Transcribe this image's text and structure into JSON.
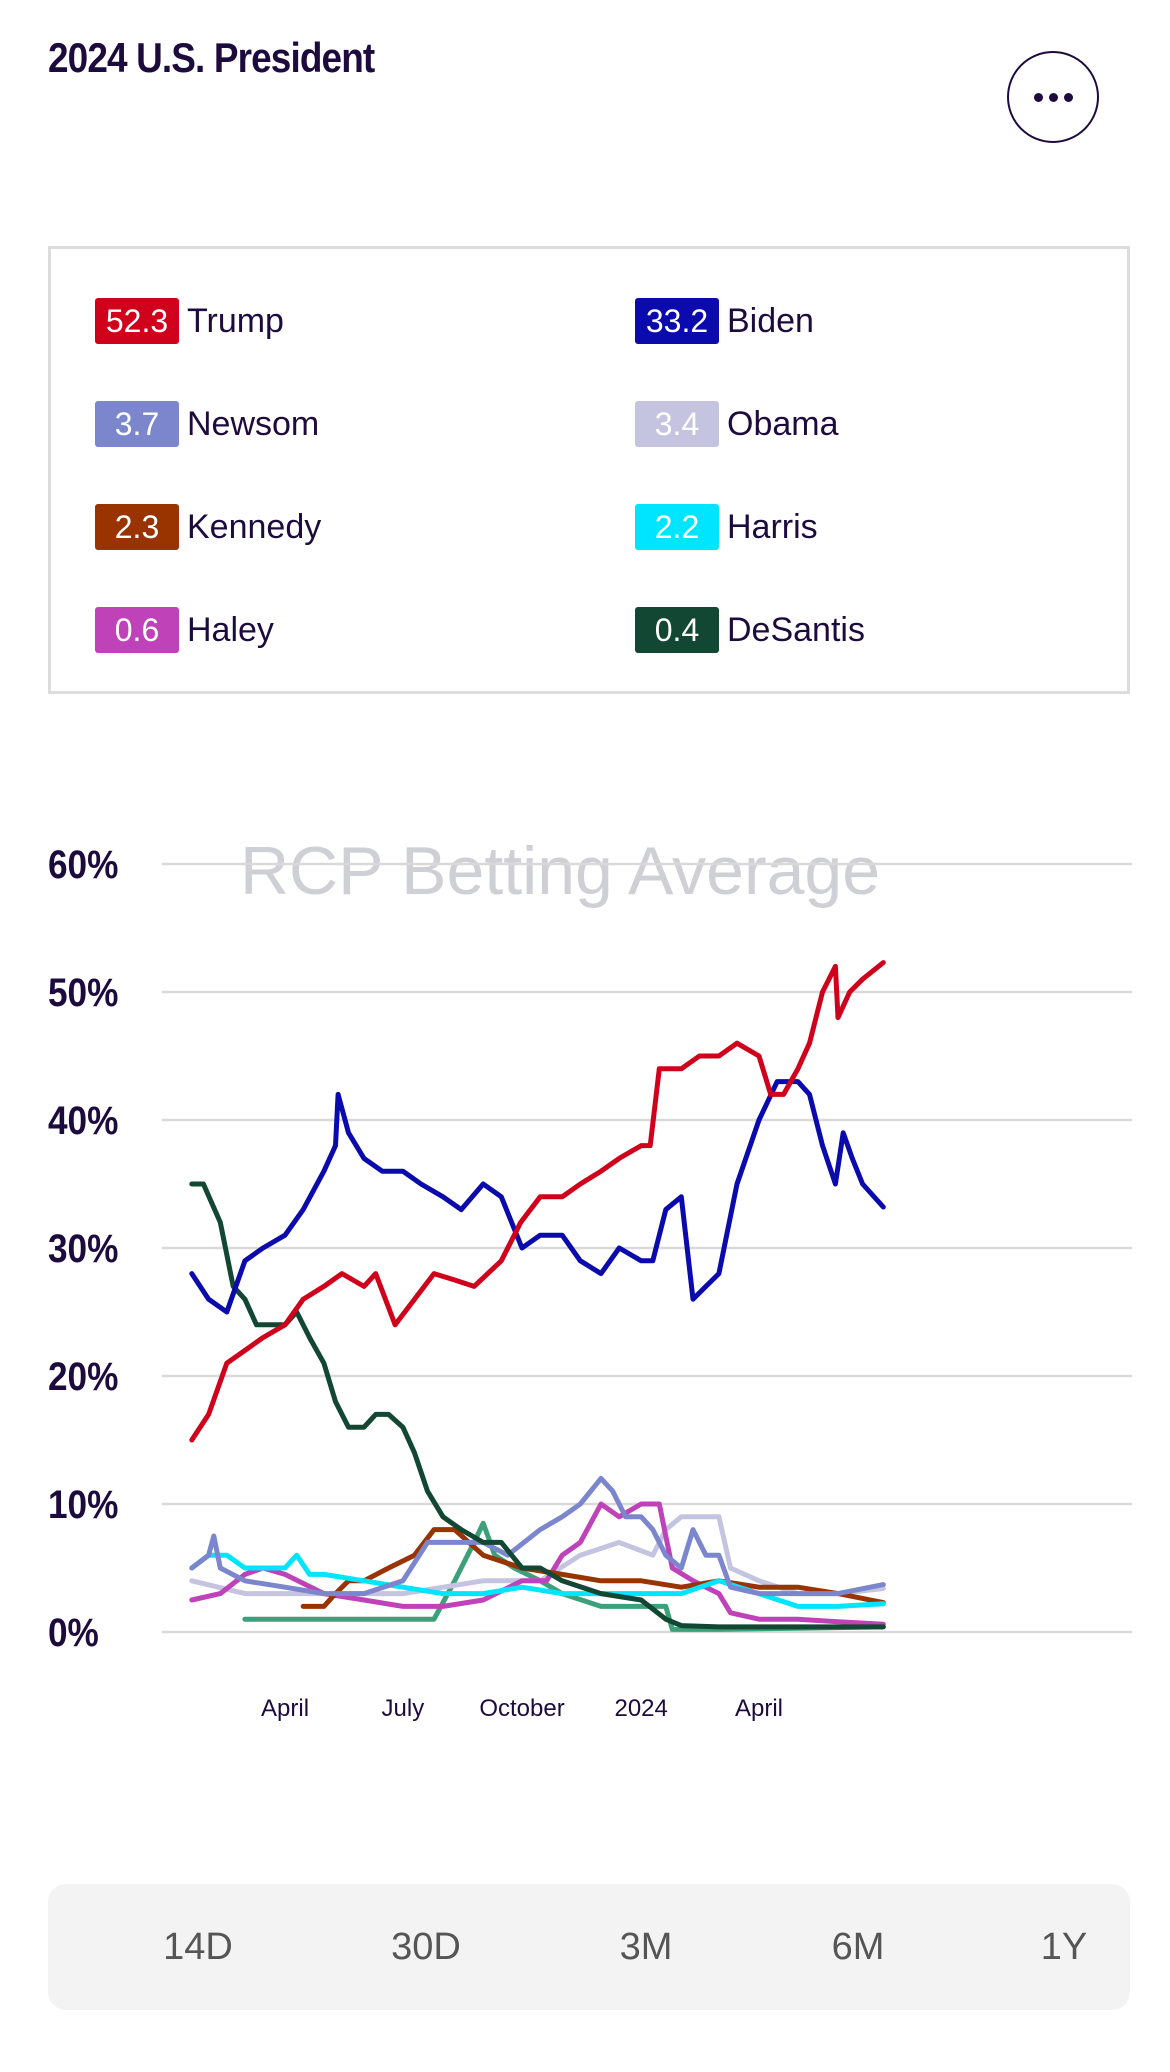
{
  "header": {
    "title": "2024 U.S. President"
  },
  "legend": [
    {
      "value": "52.3",
      "name": "Trump",
      "color": "#d0021b"
    },
    {
      "value": "33.2",
      "name": "Biden",
      "color": "#0a0aad"
    },
    {
      "value": "3.7",
      "name": "Newsom",
      "color": "#7b86cc"
    },
    {
      "value": "3.4",
      "name": "Obama",
      "color": "#c4c4e0"
    },
    {
      "value": "2.3",
      "name": "Kennedy",
      "color": "#993300"
    },
    {
      "value": "2.2",
      "name": "Harris",
      "color": "#00e5ff"
    },
    {
      "value": "0.6",
      "name": "Haley",
      "color": "#c042b8"
    },
    {
      "value": "0.4",
      "name": "DeSantis",
      "color": "#124733"
    }
  ],
  "tabs": [
    "14D",
    "30D",
    "3M",
    "6M",
    "1Y"
  ],
  "chart_data": {
    "type": "line",
    "watermark": "RCP Betting Average",
    "ylim": [
      0,
      60
    ],
    "yticks": [
      60,
      50,
      40,
      30,
      20,
      10,
      0
    ],
    "ytick_labels": [
      "60%",
      "50%",
      "40%",
      "30%",
      "20%",
      "10%",
      "0%"
    ],
    "xlim": [
      "2023-01-19",
      "2024-07-06"
    ],
    "xticks": [
      {
        "date": "2023-04-01",
        "label": "April"
      },
      {
        "date": "2023-07-01",
        "label": "July"
      },
      {
        "date": "2023-10-01",
        "label": "October"
      },
      {
        "date": "2024-01-01",
        "label": "2024"
      },
      {
        "date": "2024-04-01",
        "label": "April"
      }
    ],
    "grid": true,
    "series": [
      {
        "name": "Trump",
        "color": "#d0021b",
        "points": [
          [
            "2023-01-19",
            15
          ],
          [
            "2023-02-01",
            17
          ],
          [
            "2023-02-15",
            21
          ],
          [
            "2023-03-01",
            22
          ],
          [
            "2023-03-15",
            23
          ],
          [
            "2023-04-01",
            24
          ],
          [
            "2023-04-15",
            26
          ],
          [
            "2023-05-01",
            27
          ],
          [
            "2023-05-15",
            28
          ],
          [
            "2023-06-01",
            27
          ],
          [
            "2023-06-10",
            28
          ],
          [
            "2023-06-25",
            24
          ],
          [
            "2023-07-10",
            26
          ],
          [
            "2023-07-25",
            28
          ],
          [
            "2023-08-10",
            27.5
          ],
          [
            "2023-08-25",
            27
          ],
          [
            "2023-09-15",
            29
          ],
          [
            "2023-09-30",
            32
          ],
          [
            "2023-10-15",
            34
          ],
          [
            "2023-11-01",
            34
          ],
          [
            "2023-11-15",
            35
          ],
          [
            "2023-12-01",
            36
          ],
          [
            "2023-12-15",
            37
          ],
          [
            "2024-01-01",
            38
          ],
          [
            "2024-01-08",
            38
          ],
          [
            "2024-01-15",
            44
          ],
          [
            "2024-02-01",
            44
          ],
          [
            "2024-02-15",
            45
          ],
          [
            "2024-03-01",
            45
          ],
          [
            "2024-03-15",
            46
          ],
          [
            "2024-04-01",
            45
          ],
          [
            "2024-04-10",
            42
          ],
          [
            "2024-04-20",
            42
          ],
          [
            "2024-05-01",
            44
          ],
          [
            "2024-05-10",
            46
          ],
          [
            "2024-05-20",
            50
          ],
          [
            "2024-05-30",
            52
          ],
          [
            "2024-06-01",
            48
          ],
          [
            "2024-06-10",
            50
          ],
          [
            "2024-06-20",
            51
          ],
          [
            "2024-07-06",
            52.3
          ]
        ]
      },
      {
        "name": "Biden",
        "color": "#0a0aad",
        "points": [
          [
            "2023-01-19",
            28
          ],
          [
            "2023-02-01",
            26
          ],
          [
            "2023-02-15",
            25
          ],
          [
            "2023-03-01",
            29
          ],
          [
            "2023-03-15",
            30
          ],
          [
            "2023-04-01",
            31
          ],
          [
            "2023-04-15",
            33
          ],
          [
            "2023-05-01",
            36
          ],
          [
            "2023-05-10",
            38
          ],
          [
            "2023-05-12",
            42
          ],
          [
            "2023-05-20",
            39
          ],
          [
            "2023-06-01",
            37
          ],
          [
            "2023-06-15",
            36
          ],
          [
            "2023-07-01",
            36
          ],
          [
            "2023-07-15",
            35
          ],
          [
            "2023-08-01",
            34
          ],
          [
            "2023-08-15",
            33
          ],
          [
            "2023-09-01",
            35
          ],
          [
            "2023-09-15",
            34
          ],
          [
            "2023-10-01",
            30
          ],
          [
            "2023-10-15",
            31
          ],
          [
            "2023-11-01",
            31
          ],
          [
            "2023-11-15",
            29
          ],
          [
            "2023-12-01",
            28
          ],
          [
            "2023-12-15",
            30
          ],
          [
            "2024-01-01",
            29
          ],
          [
            "2024-01-10",
            29
          ],
          [
            "2024-01-20",
            33
          ],
          [
            "2024-02-01",
            34
          ],
          [
            "2024-02-10",
            26
          ],
          [
            "2024-02-20",
            27
          ],
          [
            "2024-03-01",
            28
          ],
          [
            "2024-03-15",
            35
          ],
          [
            "2024-04-01",
            40
          ],
          [
            "2024-04-15",
            43
          ],
          [
            "2024-05-01",
            43
          ],
          [
            "2024-05-10",
            42
          ],
          [
            "2024-05-20",
            38
          ],
          [
            "2024-05-30",
            35
          ],
          [
            "2024-06-05",
            39
          ],
          [
            "2024-06-12",
            37
          ],
          [
            "2024-06-20",
            35
          ],
          [
            "2024-07-06",
            33.2
          ]
        ]
      },
      {
        "name": "Newsom",
        "color": "#7b86cc",
        "points": [
          [
            "2023-01-19",
            5
          ],
          [
            "2023-02-01",
            6
          ],
          [
            "2023-02-05",
            7.5
          ],
          [
            "2023-02-10",
            5
          ],
          [
            "2023-03-01",
            4
          ],
          [
            "2023-04-01",
            3.5
          ],
          [
            "2023-05-01",
            3
          ],
          [
            "2023-06-01",
            3
          ],
          [
            "2023-07-01",
            4
          ],
          [
            "2023-07-20",
            7
          ],
          [
            "2023-08-10",
            7
          ],
          [
            "2023-09-01",
            7
          ],
          [
            "2023-09-20",
            6
          ],
          [
            "2023-10-15",
            8
          ],
          [
            "2023-11-01",
            9
          ],
          [
            "2023-11-15",
            10
          ],
          [
            "2023-12-01",
            12
          ],
          [
            "2023-12-10",
            11
          ],
          [
            "2023-12-20",
            9
          ],
          [
            "2024-01-01",
            9
          ],
          [
            "2024-01-10",
            8
          ],
          [
            "2024-01-20",
            6
          ],
          [
            "2024-02-01",
            5
          ],
          [
            "2024-02-10",
            8
          ],
          [
            "2024-02-20",
            6
          ],
          [
            "2024-03-01",
            6
          ],
          [
            "2024-03-10",
            3.5
          ],
          [
            "2024-04-01",
            3
          ],
          [
            "2024-05-01",
            3
          ],
          [
            "2024-06-01",
            3
          ],
          [
            "2024-07-06",
            3.7
          ]
        ]
      },
      {
        "name": "Obama",
        "color": "#c4c4e0",
        "points": [
          [
            "2023-01-19",
            4
          ],
          [
            "2023-03-01",
            3
          ],
          [
            "2023-05-01",
            3
          ],
          [
            "2023-07-01",
            3
          ],
          [
            "2023-09-01",
            4
          ],
          [
            "2023-10-15",
            4
          ],
          [
            "2023-11-15",
            6
          ],
          [
            "2023-12-15",
            7
          ],
          [
            "2024-01-10",
            6
          ],
          [
            "2024-01-20",
            8
          ],
          [
            "2024-02-01",
            9
          ],
          [
            "2024-02-15",
            9
          ],
          [
            "2024-03-01",
            9
          ],
          [
            "2024-03-10",
            5
          ],
          [
            "2024-04-01",
            4
          ],
          [
            "2024-05-01",
            3
          ],
          [
            "2024-06-01",
            3
          ],
          [
            "2024-07-06",
            3.4
          ]
        ]
      },
      {
        "name": "Kennedy",
        "color": "#993300",
        "points": [
          [
            "2023-04-15",
            2
          ],
          [
            "2023-05-01",
            2
          ],
          [
            "2023-05-10",
            3
          ],
          [
            "2023-05-20",
            4
          ],
          [
            "2023-06-01",
            4
          ],
          [
            "2023-06-20",
            5
          ],
          [
            "2023-07-10",
            6
          ],
          [
            "2023-07-25",
            8
          ],
          [
            "2023-08-10",
            8
          ],
          [
            "2023-09-01",
            6
          ],
          [
            "2023-10-01",
            5
          ],
          [
            "2023-11-01",
            4.5
          ],
          [
            "2023-12-01",
            4
          ],
          [
            "2024-01-01",
            4
          ],
          [
            "2024-02-01",
            3.5
          ],
          [
            "2024-03-01",
            4
          ],
          [
            "2024-04-01",
            3.5
          ],
          [
            "2024-05-01",
            3.5
          ],
          [
            "2024-06-01",
            3
          ],
          [
            "2024-07-06",
            2.3
          ]
        ]
      },
      {
        "name": "Harris",
        "color": "#00e5ff",
        "points": [
          [
            "2023-01-19",
            5
          ],
          [
            "2023-02-01",
            6
          ],
          [
            "2023-02-15",
            6
          ],
          [
            "2023-03-01",
            5
          ],
          [
            "2023-04-01",
            5
          ],
          [
            "2023-04-10",
            6
          ],
          [
            "2023-04-20",
            4.5
          ],
          [
            "2023-05-01",
            4.5
          ],
          [
            "2023-06-01",
            4
          ],
          [
            "2023-07-01",
            3.5
          ],
          [
            "2023-08-01",
            3
          ],
          [
            "2023-09-01",
            3
          ],
          [
            "2023-10-01",
            3.5
          ],
          [
            "2023-11-01",
            3
          ],
          [
            "2023-12-01",
            3
          ],
          [
            "2024-01-01",
            3
          ],
          [
            "2024-02-01",
            3
          ],
          [
            "2024-03-01",
            4
          ],
          [
            "2024-04-01",
            3
          ],
          [
            "2024-05-01",
            2
          ],
          [
            "2024-06-01",
            2
          ],
          [
            "2024-07-06",
            2.2
          ]
        ]
      },
      {
        "name": "Haley",
        "color": "#c042b8",
        "points": [
          [
            "2023-01-19",
            2.5
          ],
          [
            "2023-02-10",
            3
          ],
          [
            "2023-03-01",
            4.5
          ],
          [
            "2023-03-15",
            5
          ],
          [
            "2023-04-01",
            4.5
          ],
          [
            "2023-05-01",
            3
          ],
          [
            "2023-06-01",
            2.5
          ],
          [
            "2023-07-01",
            2
          ],
          [
            "2023-08-01",
            2
          ],
          [
            "2023-09-01",
            2.5
          ],
          [
            "2023-10-01",
            4
          ],
          [
            "2023-10-20",
            4
          ],
          [
            "2023-11-01",
            6
          ],
          [
            "2023-11-15",
            7
          ],
          [
            "2023-12-01",
            10
          ],
          [
            "2023-12-15",
            9
          ],
          [
            "2024-01-01",
            10
          ],
          [
            "2024-01-15",
            10
          ],
          [
            "2024-01-25",
            5
          ],
          [
            "2024-02-10",
            4
          ],
          [
            "2024-03-01",
            3
          ],
          [
            "2024-03-10",
            1.5
          ],
          [
            "2024-04-01",
            1
          ],
          [
            "2024-05-01",
            1
          ],
          [
            "2024-06-01",
            0.8
          ],
          [
            "2024-07-06",
            0.6
          ]
        ]
      },
      {
        "name": "DeSantis",
        "color": "#124733",
        "points": [
          [
            "2023-01-19",
            35
          ],
          [
            "2023-01-28",
            35
          ],
          [
            "2023-02-10",
            32
          ],
          [
            "2023-02-20",
            27
          ],
          [
            "2023-03-01",
            26
          ],
          [
            "2023-03-10",
            24
          ],
          [
            "2023-04-01",
            24
          ],
          [
            "2023-04-10",
            25
          ],
          [
            "2023-04-20",
            23
          ],
          [
            "2023-05-01",
            21
          ],
          [
            "2023-05-10",
            18
          ],
          [
            "2023-05-20",
            16
          ],
          [
            "2023-06-01",
            16
          ],
          [
            "2023-06-10",
            17
          ],
          [
            "2023-06-20",
            17
          ],
          [
            "2023-07-01",
            16
          ],
          [
            "2023-07-10",
            14
          ],
          [
            "2023-07-20",
            11
          ],
          [
            "2023-08-01",
            9
          ],
          [
            "2023-08-15",
            8
          ],
          [
            "2023-09-01",
            7
          ],
          [
            "2023-09-15",
            7
          ],
          [
            "2023-10-01",
            5
          ],
          [
            "2023-10-15",
            5
          ],
          [
            "2023-11-01",
            4
          ],
          [
            "2023-12-01",
            3
          ],
          [
            "2024-01-01",
            2.5
          ],
          [
            "2024-01-20",
            1
          ],
          [
            "2024-02-01",
            0.5
          ],
          [
            "2024-03-01",
            0.4
          ],
          [
            "2024-04-01",
            0.4
          ],
          [
            "2024-07-06",
            0.4
          ]
        ]
      },
      {
        "name": "",
        "color": "#3ca07a",
        "points": [
          [
            "2023-03-01",
            1
          ],
          [
            "2023-05-01",
            1
          ],
          [
            "2023-07-01",
            1
          ],
          [
            "2023-07-25",
            1
          ],
          [
            "2023-08-10",
            4
          ],
          [
            "2023-08-25",
            7
          ],
          [
            "2023-09-01",
            8.5
          ],
          [
            "2023-09-10",
            6
          ],
          [
            "2023-09-25",
            5
          ],
          [
            "2023-10-15",
            4
          ],
          [
            "2023-11-01",
            3
          ],
          [
            "2023-12-01",
            2
          ],
          [
            "2024-01-01",
            2
          ],
          [
            "2024-01-20",
            2
          ],
          [
            "2024-01-25",
            0.2
          ],
          [
            "2024-03-01",
            0.2
          ],
          [
            "2024-07-06",
            0.4
          ]
        ]
      }
    ]
  }
}
